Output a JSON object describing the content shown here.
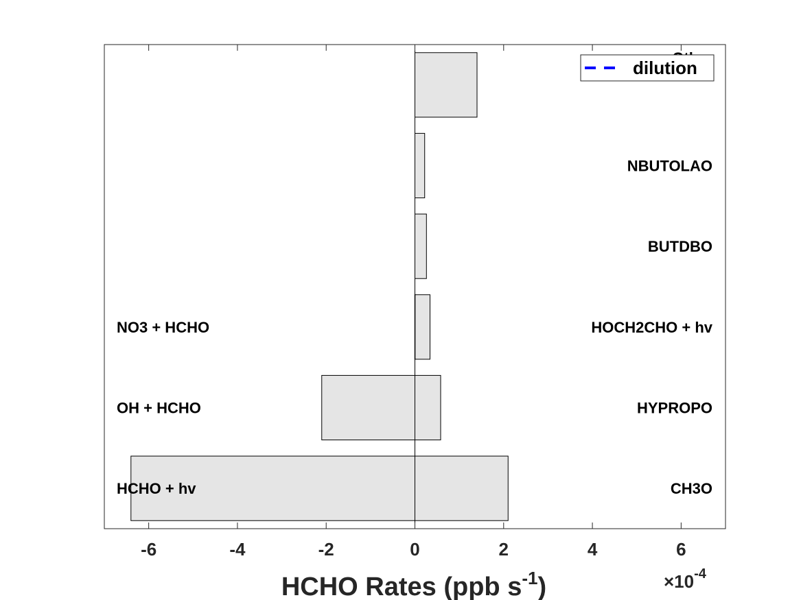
{
  "chart_data": {
    "type": "bar",
    "orientation": "horizontal",
    "stacked": "diverging",
    "multiplier_label": {
      "times": "×10",
      "exponent": "-4"
    },
    "xlabel": {
      "main": "HCHO Rates (ppb s",
      "exponent": "-1",
      "close": ")"
    },
    "xlim": [
      -7,
      7
    ],
    "xticks": [
      -6,
      -4,
      -2,
      0,
      2,
      4,
      6
    ],
    "bar_fill": "#e5e5e5",
    "bar_edge": "#000000",
    "production": {
      "categories": [
        "CH3O",
        "HYPROPO",
        "HOCH2CHO + hv",
        "BUTDBO",
        "NBUTOLAO",
        "Other"
      ],
      "values": [
        2.1,
        0.58,
        0.34,
        0.26,
        0.22,
        1.4
      ]
    },
    "loss": {
      "categories": [
        "HCHO + hv",
        "OH + HCHO",
        "NO3 + HCHO"
      ],
      "values": [
        -6.4,
        -2.1,
        -0.003
      ]
    },
    "legend": {
      "entries": [
        {
          "name": "dilution",
          "color": "#0000ff",
          "style": "dashed"
        }
      ],
      "position": "top-right"
    }
  }
}
